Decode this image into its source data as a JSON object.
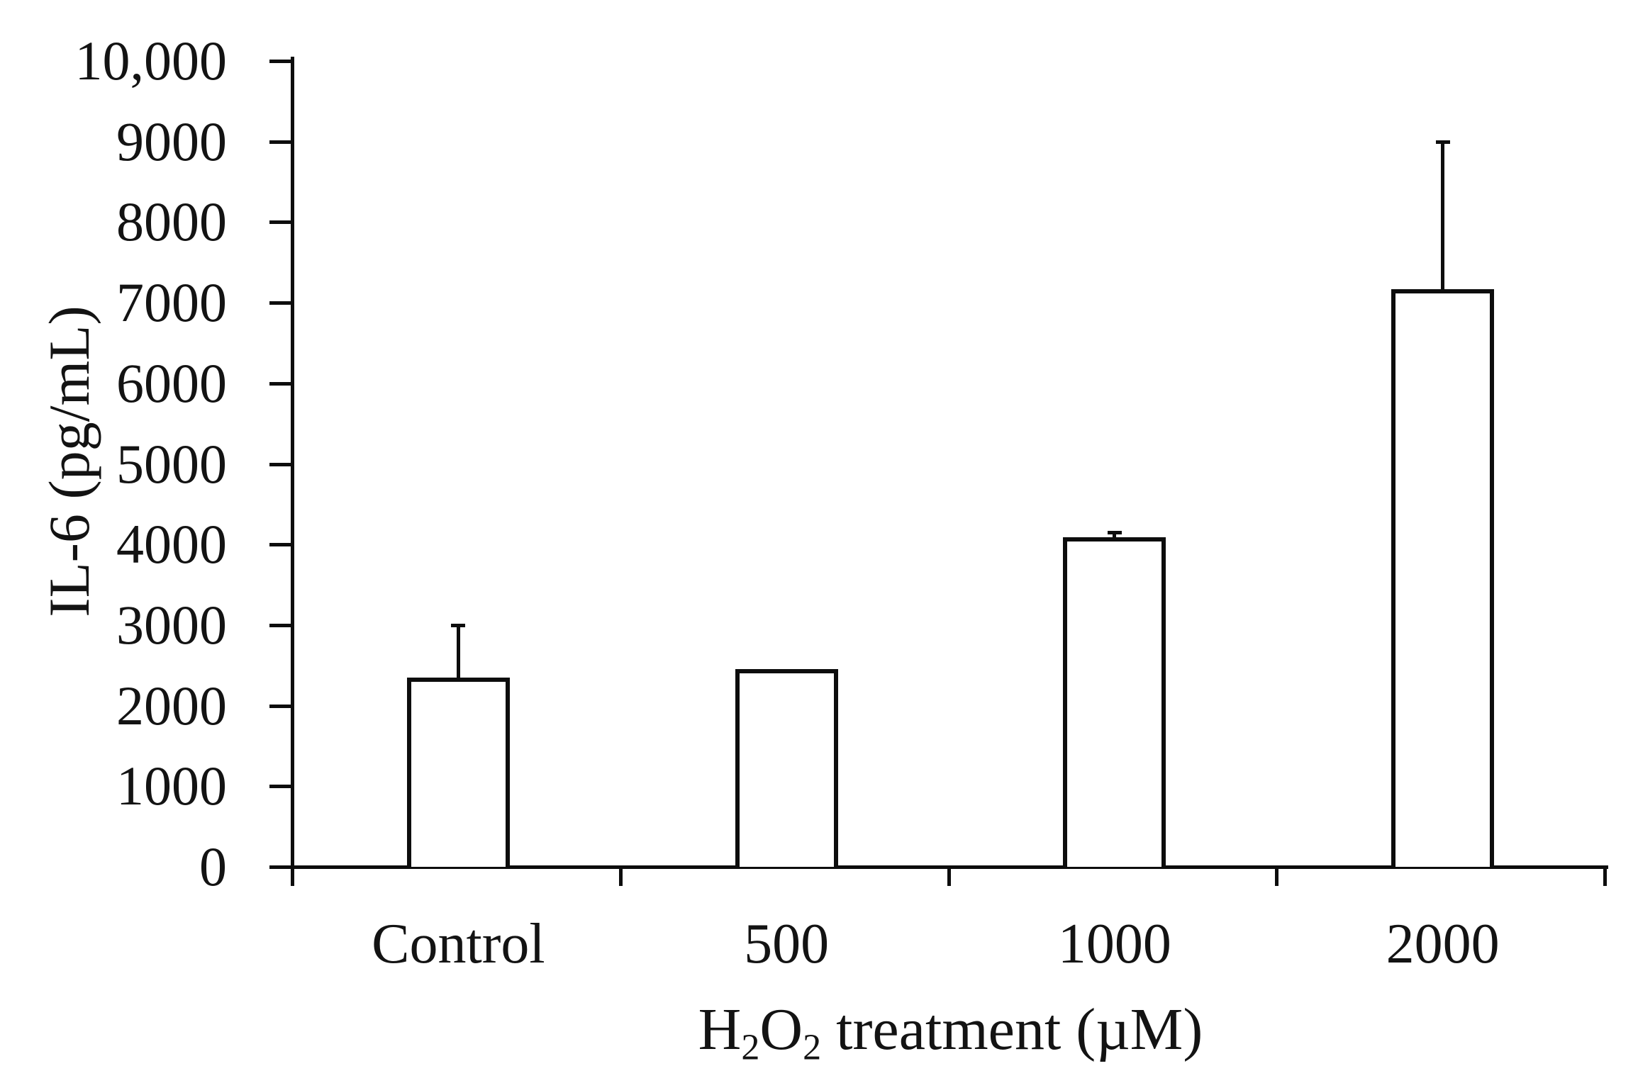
{
  "chart_data": {
    "type": "bar",
    "title": "",
    "xlabel": "H₂O₂ treatment (µM)",
    "xlabel_segments": [
      {
        "text": "H",
        "sub": false
      },
      {
        "text": "2",
        "sub": true
      },
      {
        "text": "O",
        "sub": false
      },
      {
        "text": "2",
        "sub": true
      },
      {
        "text": " treatment (µM)",
        "sub": false
      }
    ],
    "ylabel": "IL-6 (pg/mL)",
    "categories": [
      "Control",
      "500",
      "1000",
      "2000"
    ],
    "values": [
      2350,
      2450,
      4090,
      7170
    ],
    "errors_plus": [
      650,
      0,
      60,
      1830
    ],
    "error_bar_tops": [
      3000,
      null,
      4150,
      9000
    ],
    "ylim": [
      0,
      10000
    ],
    "ytick_values": [
      0,
      1000,
      2000,
      3000,
      4000,
      5000,
      6000,
      7000,
      8000,
      9000,
      10000
    ],
    "ytick_labels": [
      "0",
      "1000",
      "2000",
      "3000",
      "4000",
      "5000",
      "6000",
      "7000",
      "8000",
      "9000",
      "10,000"
    ],
    "grid": false,
    "legend": null,
    "bar_fill": "#ffffff",
    "bar_stroke": "#0d0d0d",
    "axis_color": "#0d0d0d",
    "text_color": "#131313"
  }
}
